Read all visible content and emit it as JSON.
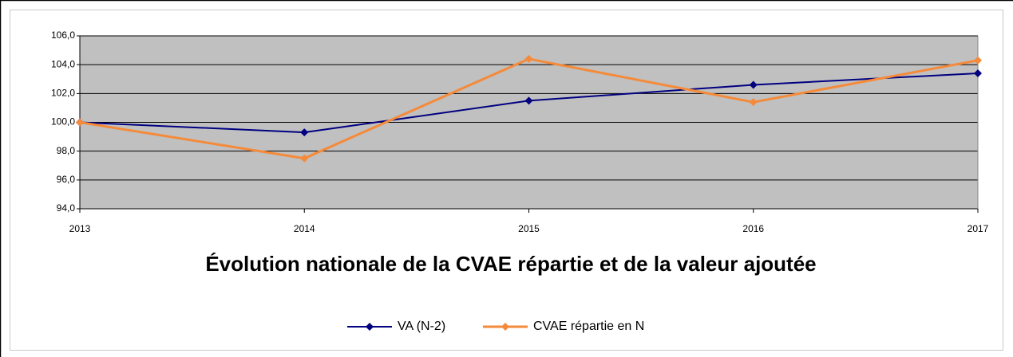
{
  "chart_data": {
    "type": "line",
    "title": "Évolution nationale de la CVAE répartie et de la valeur ajoutée",
    "x": [
      2013,
      2014,
      2015,
      2016,
      2017
    ],
    "xlim": [
      2013,
      2017
    ],
    "xticks": [
      2013,
      2014,
      2015,
      2016,
      2017
    ],
    "ylim": [
      94,
      106
    ],
    "yticks": [
      {
        "value": 94,
        "label": "94,0"
      },
      {
        "value": 96,
        "label": "96,0"
      },
      {
        "value": 98,
        "label": "98,0"
      },
      {
        "value": 100,
        "label": "100,0"
      },
      {
        "value": 102,
        "label": "102,0"
      },
      {
        "value": 104,
        "label": "104,0"
      },
      {
        "value": 106,
        "label": "106,0"
      }
    ],
    "grid": true,
    "legend": "bottom",
    "series": [
      {
        "name": "VA (N-2)",
        "color": "#000080",
        "values": [
          100,
          99.3,
          101.5,
          102.6,
          103.4
        ]
      },
      {
        "name": "CVAE répartie en N",
        "color": "#f58a3a",
        "values": [
          100,
          97.5,
          104.4,
          101.4,
          104.3
        ]
      }
    ]
  }
}
